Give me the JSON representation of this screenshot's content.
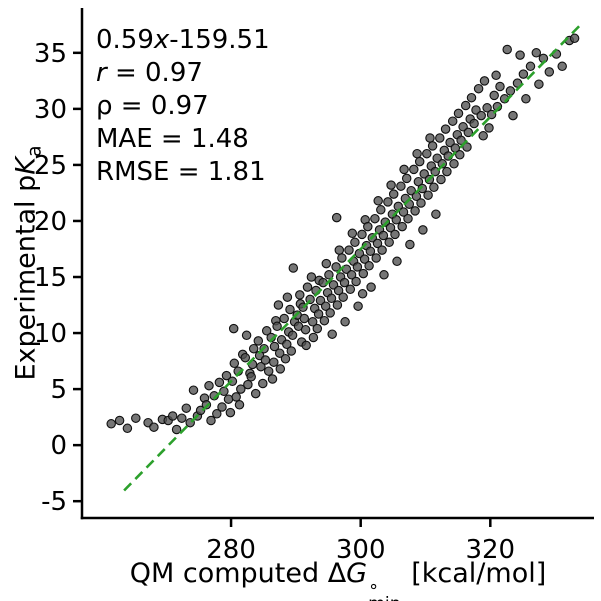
{
  "figure": {
    "ylabel": {
      "pre": "Experimental p",
      "italic": "K",
      "sub": "a"
    },
    "xlabel": {
      "pre": "QM computed Δ",
      "italic": "G",
      "sup": "∘",
      "sub": "min",
      "post": " [kcal/mol]"
    },
    "stats": {
      "eq_pre": "0.59",
      "eq_it": "x",
      "eq_post": "-159.51",
      "r_it": "r",
      "r_post": " = 0.97",
      "rho": "ρ = 0.97",
      "mae": "MAE = 1.48",
      "rmse": "RMSE = 1.81"
    }
  },
  "chart_data": {
    "type": "scatter",
    "xlabel": "QM computed ΔG∘min [kcal/mol]",
    "ylabel": "Experimental pKa",
    "xlim": [
      257,
      336
    ],
    "ylim": [
      -6.5,
      39
    ],
    "x_ticks": [
      280,
      300,
      320
    ],
    "y_ticks": [
      -5,
      0,
      5,
      10,
      15,
      20,
      25,
      30,
      35
    ],
    "grid": false,
    "fit_line": {
      "slope": 0.59,
      "intercept": -159.51,
      "x_range": [
        263.5,
        334
      ],
      "color": "#2ca02c",
      "dash": "dashed",
      "label": "0.59x-159.51"
    },
    "stats": {
      "r": 0.97,
      "rho": 0.97,
      "MAE": 1.48,
      "RMSE": 1.81
    },
    "marker": {
      "color": "#4f4f4f",
      "edge": "#0f0f0f",
      "opacity": 0.78,
      "radius": 4.2
    },
    "points": [
      [
        261.5,
        1.9
      ],
      [
        262.8,
        2.2
      ],
      [
        264.0,
        1.5
      ],
      [
        265.3,
        2.4
      ],
      [
        267.2,
        2.0
      ],
      [
        268.1,
        1.6
      ],
      [
        269.4,
        2.3
      ],
      [
        270.3,
        2.2
      ],
      [
        271.0,
        2.6
      ],
      [
        271.6,
        1.4
      ],
      [
        272.4,
        2.4
      ],
      [
        273.1,
        3.3
      ],
      [
        273.7,
        2.0
      ],
      [
        274.2,
        4.9
      ],
      [
        274.8,
        2.6
      ],
      [
        275.3,
        3.1
      ],
      [
        275.9,
        4.2
      ],
      [
        276.2,
        3.6
      ],
      [
        276.6,
        5.3
      ],
      [
        276.9,
        2.2
      ],
      [
        277.4,
        4.4
      ],
      [
        277.8,
        2.8
      ],
      [
        278.2,
        5.6
      ],
      [
        278.6,
        3.4
      ],
      [
        278.9,
        4.8
      ],
      [
        279.3,
        6.2
      ],
      [
        279.6,
        4.1
      ],
      [
        279.9,
        2.9
      ],
      [
        280.2,
        5.7
      ],
      [
        280.5,
        7.3
      ],
      [
        280.8,
        4.3
      ],
      [
        280.4,
        10.4
      ],
      [
        281.1,
        6.6
      ],
      [
        281.5,
        5.0
      ],
      [
        281.8,
        8.1
      ],
      [
        281.3,
        3.6
      ],
      [
        282.2,
        7.8
      ],
      [
        282.6,
        5.4
      ],
      [
        282.9,
        6.4
      ],
      [
        282.4,
        9.8
      ],
      [
        283.1,
        6.1
      ],
      [
        283.5,
        8.6
      ],
      [
        283.8,
        4.6
      ],
      [
        283.3,
        7.2
      ],
      [
        284.2,
        9.3
      ],
      [
        284.6,
        7.0
      ],
      [
        284.9,
        5.5
      ],
      [
        284.4,
        8.0
      ],
      [
        285.1,
        8.6
      ],
      [
        285.5,
        10.2
      ],
      [
        285.8,
        6.6
      ],
      [
        285.3,
        7.6
      ],
      [
        286.2,
        9.6
      ],
      [
        286.6,
        7.4
      ],
      [
        286.9,
        11.1
      ],
      [
        286.4,
        5.9
      ],
      [
        286.7,
        8.8
      ],
      [
        287.1,
        10.6
      ],
      [
        287.5,
        8.2
      ],
      [
        287.8,
        9.4
      ],
      [
        287.3,
        12.5
      ],
      [
        287.6,
        6.8
      ],
      [
        288.2,
        11.3
      ],
      [
        288.6,
        9.0
      ],
      [
        288.9,
        10.1
      ],
      [
        288.4,
        7.7
      ],
      [
        288.7,
        13.2
      ],
      [
        289.1,
        12.1
      ],
      [
        289.5,
        9.8
      ],
      [
        289.8,
        11.0
      ],
      [
        289.3,
        8.4
      ],
      [
        289.6,
        15.8
      ],
      [
        290.2,
        11.6
      ],
      [
        290.6,
        13.4
      ],
      [
        290.9,
        9.2
      ],
      [
        290.4,
        10.6
      ],
      [
        290.7,
        12.6
      ],
      [
        291.1,
        12.3
      ],
      [
        291.5,
        10.3
      ],
      [
        291.8,
        14.1
      ],
      [
        291.3,
        11.3
      ],
      [
        291.6,
        8.9
      ],
      [
        292.2,
        13.0
      ],
      [
        292.6,
        11.0
      ],
      [
        292.9,
        12.2
      ],
      [
        292.4,
        15.0
      ],
      [
        292.7,
        9.6
      ],
      [
        293.1,
        13.8
      ],
      [
        293.5,
        11.7
      ],
      [
        293.8,
        12.9
      ],
      [
        293.3,
        10.4
      ],
      [
        293.6,
        14.7
      ],
      [
        294.2,
        14.5
      ],
      [
        294.6,
        12.4
      ],
      [
        294.9,
        13.6
      ],
      [
        294.4,
        11.1
      ],
      [
        294.7,
        16.2
      ],
      [
        295.1,
        15.2
      ],
      [
        295.5,
        13.1
      ],
      [
        295.8,
        14.3
      ],
      [
        295.3,
        11.8
      ],
      [
        295.6,
        9.9
      ],
      [
        296.2,
        15.9
      ],
      [
        296.6,
        13.8
      ],
      [
        296.9,
        15.0
      ],
      [
        296.4,
        12.5
      ],
      [
        296.7,
        17.4
      ],
      [
        296.3,
        20.3
      ],
      [
        297.1,
        16.7
      ],
      [
        297.5,
        14.5
      ],
      [
        297.8,
        15.7
      ],
      [
        297.3,
        13.2
      ],
      [
        297.6,
        11.0
      ],
      [
        298.2,
        17.4
      ],
      [
        298.6,
        15.2
      ],
      [
        298.9,
        16.4
      ],
      [
        298.4,
        13.9
      ],
      [
        298.7,
        18.9
      ],
      [
        299.1,
        18.1
      ],
      [
        299.5,
        15.9
      ],
      [
        299.8,
        17.1
      ],
      [
        299.3,
        14.6
      ],
      [
        299.6,
        12.4
      ],
      [
        300.2,
        18.8
      ],
      [
        300.6,
        16.6
      ],
      [
        300.9,
        17.8
      ],
      [
        300.4,
        15.3
      ],
      [
        300.7,
        20.1
      ],
      [
        300.3,
        13.5
      ],
      [
        301.1,
        19.5
      ],
      [
        301.5,
        17.3
      ],
      [
        301.8,
        18.5
      ],
      [
        301.3,
        16.0
      ],
      [
        301.6,
        14.1
      ],
      [
        302.2,
        20.2
      ],
      [
        302.6,
        18.0
      ],
      [
        302.9,
        19.2
      ],
      [
        302.4,
        16.7
      ],
      [
        302.7,
        21.8
      ],
      [
        303.1,
        21.0
      ],
      [
        303.5,
        18.7
      ],
      [
        303.8,
        19.9
      ],
      [
        303.3,
        17.4
      ],
      [
        303.6,
        15.2
      ],
      [
        304.2,
        21.7
      ],
      [
        304.6,
        19.4
      ],
      [
        304.9,
        20.6
      ],
      [
        304.4,
        18.1
      ],
      [
        304.7,
        23.2
      ],
      [
        305.1,
        22.4
      ],
      [
        305.5,
        20.1
      ],
      [
        305.8,
        21.3
      ],
      [
        305.3,
        18.8
      ],
      [
        305.6,
        16.4
      ],
      [
        306.2,
        23.1
      ],
      [
        306.6,
        20.8
      ],
      [
        306.9,
        22.0
      ],
      [
        306.4,
        19.5
      ],
      [
        306.7,
        24.6
      ],
      [
        307.1,
        23.8
      ],
      [
        307.5,
        21.5
      ],
      [
        307.8,
        22.7
      ],
      [
        307.3,
        20.2
      ],
      [
        307.6,
        17.9
      ],
      [
        308.2,
        24.6
      ],
      [
        308.6,
        22.2
      ],
      [
        308.9,
        23.5
      ],
      [
        308.4,
        20.9
      ],
      [
        308.7,
        26.0
      ],
      [
        309.1,
        25.3
      ],
      [
        309.5,
        22.9
      ],
      [
        309.8,
        24.2
      ],
      [
        309.3,
        21.6
      ],
      [
        309.6,
        19.2
      ],
      [
        310.2,
        26.0
      ],
      [
        310.6,
        23.7
      ],
      [
        310.9,
        24.9
      ],
      [
        310.4,
        22.3
      ],
      [
        310.7,
        27.4
      ],
      [
        311.1,
        26.7
      ],
      [
        311.5,
        24.4
      ],
      [
        311.8,
        25.6
      ],
      [
        311.3,
        23.0
      ],
      [
        311.6,
        20.6
      ],
      [
        312.2,
        27.4
      ],
      [
        312.6,
        25.1
      ],
      [
        312.9,
        26.3
      ],
      [
        312.4,
        23.7
      ],
      [
        313.1,
        28.2
      ],
      [
        313.5,
        25.8
      ],
      [
        313.8,
        27.0
      ],
      [
        313.3,
        24.4
      ],
      [
        314.2,
        28.9
      ],
      [
        314.6,
        26.5
      ],
      [
        314.9,
        27.7
      ],
      [
        314.4,
        25.1
      ],
      [
        315.1,
        29.6
      ],
      [
        315.5,
        27.2
      ],
      [
        315.8,
        28.4
      ],
      [
        315.3,
        25.9
      ],
      [
        316.2,
        30.3
      ],
      [
        316.6,
        27.9
      ],
      [
        316.9,
        29.1
      ],
      [
        316.4,
        26.6
      ],
      [
        317.1,
        31.0
      ],
      [
        317.5,
        28.7
      ],
      [
        317.8,
        29.9
      ],
      [
        318.2,
        31.8
      ],
      [
        318.6,
        29.4
      ],
      [
        318.9,
        27.6
      ],
      [
        319.1,
        32.5
      ],
      [
        319.5,
        30.1
      ],
      [
        319.8,
        28.3
      ],
      [
        320.2,
        29.5
      ],
      [
        320.6,
        31.2
      ],
      [
        320.9,
        33.0
      ],
      [
        321.1,
        30.2
      ],
      [
        321.5,
        32.0
      ],
      [
        322.2,
        30.9
      ],
      [
        322.6,
        35.3
      ],
      [
        323.1,
        31.6
      ],
      [
        323.5,
        29.4
      ],
      [
        324.2,
        32.3
      ],
      [
        324.6,
        34.8
      ],
      [
        325.1,
        33.1
      ],
      [
        325.5,
        30.9
      ],
      [
        326.2,
        33.8
      ],
      [
        327.1,
        35.0
      ],
      [
        327.5,
        32.2
      ],
      [
        328.2,
        34.5
      ],
      [
        329.1,
        33.3
      ],
      [
        330.2,
        34.9
      ],
      [
        331.1,
        33.8
      ],
      [
        332.2,
        36.1
      ],
      [
        333.0,
        36.3
      ]
    ]
  }
}
